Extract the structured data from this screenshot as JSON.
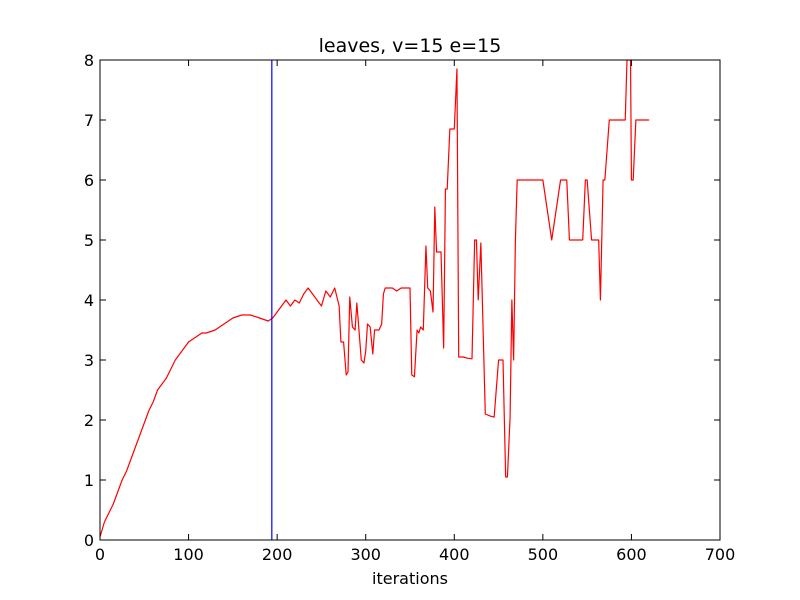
{
  "chart_data": {
    "type": "line",
    "title": "leaves, v=15 e=15",
    "xlabel": "iterations",
    "ylabel": "",
    "xlim": [
      0,
      700
    ],
    "ylim": [
      0,
      8
    ],
    "xticks": [
      0,
      100,
      200,
      300,
      400,
      500,
      600,
      700
    ],
    "yticks": [
      0,
      1,
      2,
      3,
      4,
      5,
      6,
      7,
      8
    ],
    "grid": false,
    "legend": "none",
    "vline": {
      "x": 194,
      "color": "#0000ff"
    },
    "series": [
      {
        "color": "#ff0000",
        "x": [
          0,
          5,
          10,
          15,
          20,
          25,
          30,
          35,
          40,
          45,
          50,
          55,
          60,
          65,
          70,
          75,
          80,
          85,
          90,
          95,
          100,
          105,
          110,
          115,
          120,
          130,
          140,
          150,
          160,
          170,
          180,
          190,
          195,
          200,
          205,
          210,
          215,
          220,
          225,
          230,
          235,
          240,
          245,
          250,
          255,
          260,
          265,
          270,
          272,
          275,
          278,
          280,
          282,
          285,
          288,
          290,
          295,
          298,
          300,
          302,
          305,
          308,
          310,
          315,
          318,
          320,
          322,
          325,
          330,
          335,
          340,
          345,
          350,
          352,
          355,
          358,
          360,
          362,
          365,
          368,
          370,
          373,
          376,
          378,
          380,
          382,
          385,
          388,
          390,
          392,
          395,
          398,
          400,
          403,
          405,
          407,
          410,
          415,
          420,
          423,
          425,
          427,
          430,
          435,
          440,
          442,
          445,
          450,
          455,
          458,
          460,
          463,
          465,
          467,
          469,
          471,
          473,
          475,
          480,
          490,
          500,
          510,
          520,
          525,
          527,
          530,
          535,
          540,
          545,
          548,
          550,
          555,
          560,
          563,
          565,
          568,
          570,
          575,
          580,
          585,
          590,
          593,
          595,
          597,
          599,
          600,
          602,
          605,
          610,
          615,
          620
        ],
        "y": [
          0.05,
          0.3,
          0.45,
          0.6,
          0.8,
          1.0,
          1.15,
          1.35,
          1.55,
          1.75,
          1.95,
          2.15,
          2.3,
          2.5,
          2.6,
          2.7,
          2.85,
          3.0,
          3.1,
          3.2,
          3.3,
          3.35,
          3.4,
          3.45,
          3.45,
          3.5,
          3.6,
          3.7,
          3.75,
          3.75,
          3.7,
          3.65,
          3.7,
          3.8,
          3.9,
          4.0,
          3.9,
          4.0,
          3.95,
          4.1,
          4.2,
          4.1,
          4.0,
          3.9,
          4.15,
          4.05,
          4.2,
          3.9,
          3.3,
          3.3,
          2.75,
          2.8,
          4.05,
          3.55,
          3.5,
          3.95,
          3.0,
          2.95,
          3.15,
          3.6,
          3.55,
          3.1,
          3.5,
          3.5,
          3.6,
          4.1,
          4.2,
          4.2,
          4.2,
          4.15,
          4.2,
          4.2,
          4.2,
          2.75,
          2.72,
          3.5,
          3.45,
          3.55,
          3.5,
          4.9,
          4.2,
          4.15,
          3.8,
          5.55,
          4.8,
          4.8,
          4.8,
          3.2,
          5.85,
          5.85,
          6.85,
          6.85,
          6.85,
          7.85,
          3.05,
          3.05,
          3.05,
          3.03,
          3.02,
          5.0,
          5.0,
          4.0,
          4.95,
          2.1,
          2.07,
          2.06,
          2.05,
          3.0,
          3.0,
          1.05,
          1.05,
          2.05,
          4.0,
          3.0,
          5.0,
          6.0,
          6.0,
          6.0,
          6.0,
          6.0,
          6.0,
          5.0,
          6.0,
          6.0,
          6.0,
          5.0,
          5.0,
          5.0,
          5.0,
          6.0,
          6.0,
          5.0,
          5.0,
          5.0,
          4.0,
          6.0,
          6.0,
          7.0,
          7.0,
          7.0,
          7.0,
          7.0,
          8.0,
          8.0,
          8.0,
          6.0,
          6.0,
          7.0,
          7.0,
          7.0,
          7.0
        ]
      }
    ]
  }
}
